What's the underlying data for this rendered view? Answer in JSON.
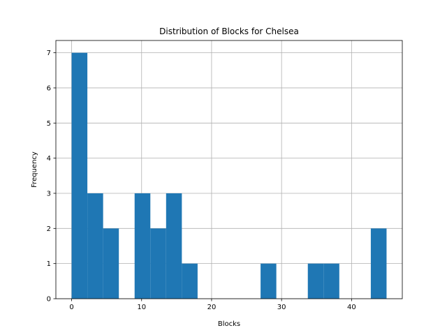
{
  "chart_data": {
    "type": "bar",
    "title": "Distribution of Blocks for Chelsea",
    "xlabel": "Blocks",
    "ylabel": "Frequency",
    "bin_start": 0,
    "bin_width": 2.25,
    "counts": [
      7,
      3,
      2,
      0,
      3,
      2,
      3,
      1,
      0,
      0,
      0,
      0,
      1,
      0,
      0,
      1,
      1,
      0,
      0,
      2
    ],
    "xlim": [
      -2.25,
      47.25
    ],
    "ylim": [
      0,
      7.35
    ],
    "xticks": [
      0,
      10,
      20,
      30,
      40
    ],
    "yticks": [
      0,
      1,
      2,
      3,
      4,
      5,
      6,
      7
    ],
    "grid": true,
    "bar_color": "#1f77b4"
  }
}
